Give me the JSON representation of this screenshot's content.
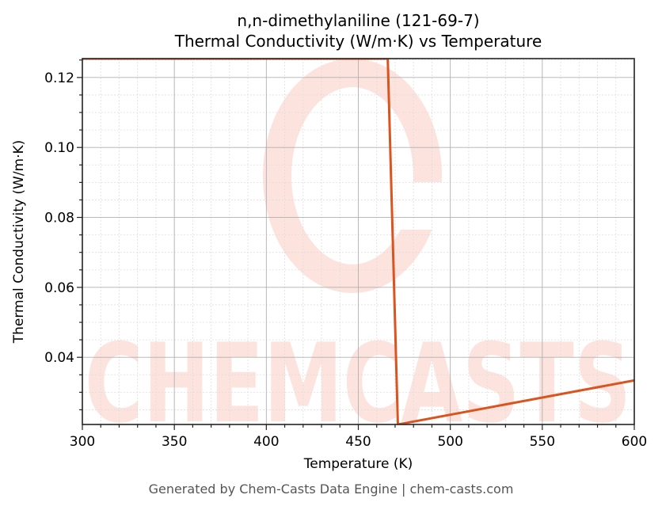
{
  "chart_data": {
    "type": "line",
    "title": "n,n-dimethylaniline (121-69-7)",
    "subtitle": "Thermal Conductivity (W/m·K) vs Temperature",
    "xlabel": "Temperature (K)",
    "ylabel": "Thermal Conductivity (W/m·K)",
    "xlim": [
      300,
      600
    ],
    "ylim": [
      0.0208,
      0.1254
    ],
    "x_ticks": [
      300,
      350,
      400,
      450,
      500,
      550,
      600
    ],
    "x_tick_labels": [
      "300",
      "350",
      "400",
      "450",
      "500",
      "550",
      "600"
    ],
    "y_ticks": [
      0.04,
      0.06,
      0.08,
      0.1,
      0.12
    ],
    "y_tick_labels": [
      "0.04",
      "0.06",
      "0.08",
      "0.10",
      "0.12"
    ],
    "grid": true,
    "legend": null,
    "series": [
      {
        "name": "Thermal Conductivity",
        "color": "#d9541e",
        "x": [
          300,
          466,
          471.5,
          600
        ],
        "y": [
          0.1254,
          0.1254,
          0.0208,
          0.0334
        ]
      }
    ]
  },
  "watermark": {
    "text": "CHEMCASTS",
    "color": "#fde3de"
  },
  "footer": "Generated by Chem-Casts Data Engine | chem-casts.com"
}
